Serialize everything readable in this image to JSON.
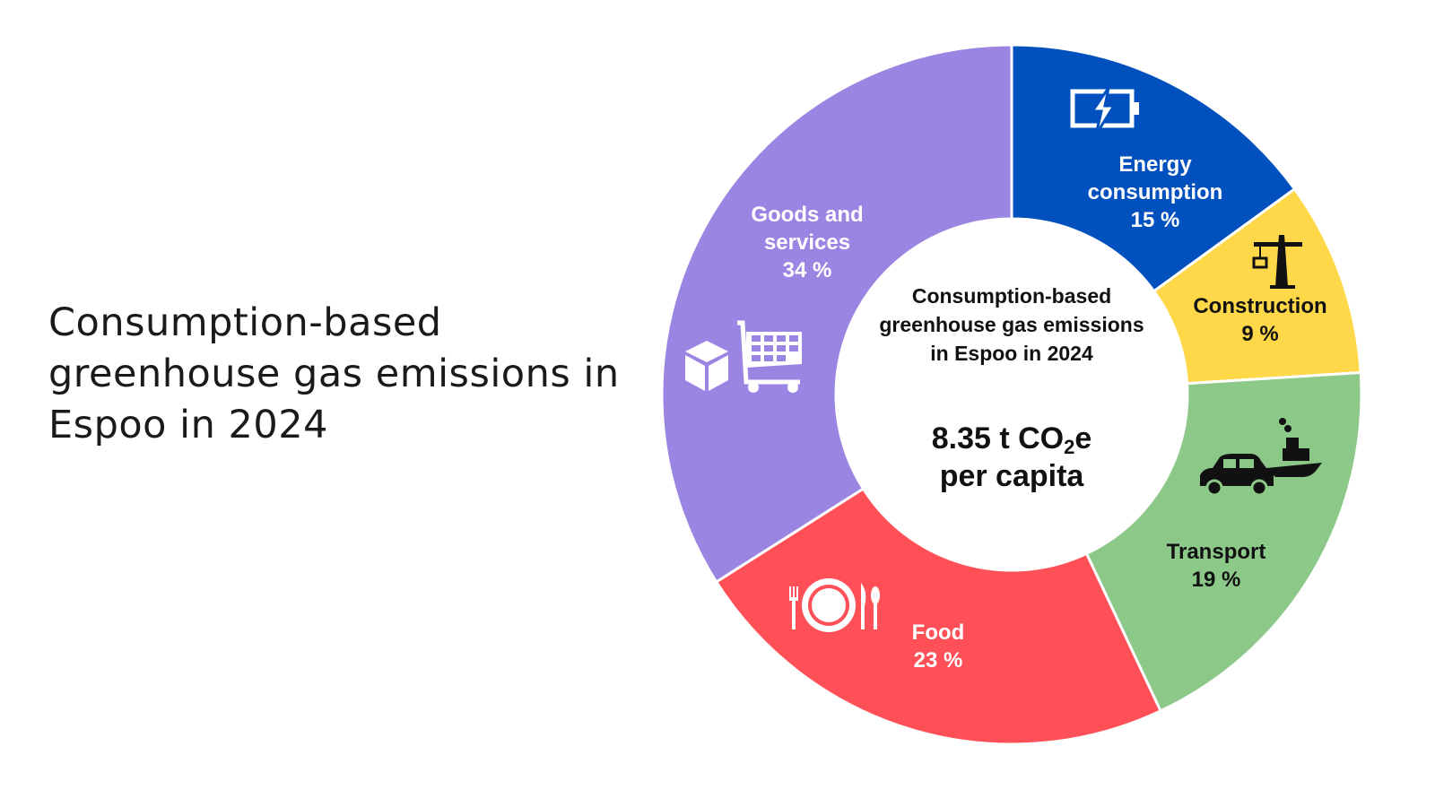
{
  "title": "Consumption-based greenhouse gas emissions in Espoo in 2024",
  "chart_data": {
    "type": "pie",
    "donut": true,
    "start": "12 o'clock, clockwise",
    "slices": [
      {
        "label_line1": "Energy",
        "label_line2": "consumption",
        "value": 15,
        "value_label": "15 %",
        "color": "#0050BE",
        "text_color": "#ffffff",
        "icon": "battery-bolt-icon"
      },
      {
        "label_line1": "Construction",
        "label_line2": "",
        "value": 9,
        "value_label": "9 %",
        "color": "#FFD84A",
        "text_color": "#111111",
        "icon": "crane-icon"
      },
      {
        "label_line1": "Transport",
        "label_line2": "",
        "value": 19,
        "value_label": "19 %",
        "color": "#8CC888",
        "text_color": "#111111",
        "icon": "car-and-ship-icon"
      },
      {
        "label_line1": "Food",
        "label_line2": "",
        "value": 23,
        "value_label": "23 %",
        "color": "#FF5058",
        "text_color": "#ffffff",
        "icon": "plate-cutlery-icon"
      },
      {
        "label_line1": "Goods and",
        "label_line2": "services",
        "value": 34,
        "value_label": "34 %",
        "color": "#9B85E3",
        "text_color": "#ffffff",
        "icon": "box-and-cart-icon"
      }
    ],
    "center": {
      "title": "Consumption-based greenhouse gas emissions in Espoo in 2024",
      "value_prefix": "8.35 t CO",
      "value_sub": "2",
      "value_suffix": "e",
      "value_line2": "per capita"
    }
  }
}
